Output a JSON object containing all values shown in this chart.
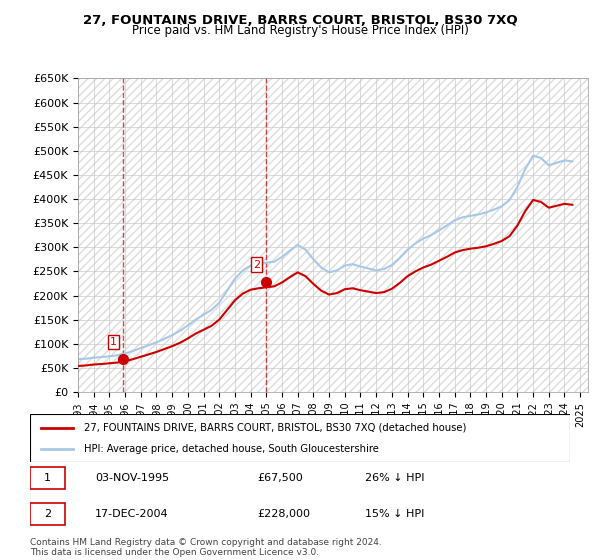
{
  "title": "27, FOUNTAINS DRIVE, BARRS COURT, BRISTOL, BS30 7XQ",
  "subtitle": "Price paid vs. HM Land Registry's House Price Index (HPI)",
  "legend_line1": "27, FOUNTAINS DRIVE, BARRS COURT, BRISTOL, BS30 7XQ (detached house)",
  "legend_line2": "HPI: Average price, detached house, South Gloucestershire",
  "table_row1_num": "1",
  "table_row1_date": "03-NOV-1995",
  "table_row1_price": "£67,500",
  "table_row1_hpi": "26% ↓ HPI",
  "table_row2_num": "2",
  "table_row2_date": "17-DEC-2004",
  "table_row2_price": "£228,000",
  "table_row2_hpi": "15% ↓ HPI",
  "footer": "Contains HM Land Registry data © Crown copyright and database right 2024.\nThis data is licensed under the Open Government Licence v3.0.",
  "ylim": [
    0,
    650000
  ],
  "yticks": [
    0,
    50000,
    100000,
    150000,
    200000,
    250000,
    300000,
    350000,
    400000,
    450000,
    500000,
    550000,
    600000,
    650000
  ],
  "ytick_labels": [
    "£0",
    "£50K",
    "£100K",
    "£150K",
    "£200K",
    "£250K",
    "£300K",
    "£350K",
    "£400K",
    "£450K",
    "£500K",
    "£550K",
    "£600K",
    "£650K"
  ],
  "hpi_color": "#a8c8e8",
  "price_color": "#cc0000",
  "marker_color": "#cc0000",
  "sale1_x": 1995.84,
  "sale1_y": 67500,
  "sale2_x": 2004.96,
  "sale2_y": 228000,
  "xmin": 1993,
  "xmax": 2025,
  "xticks": [
    1993,
    1994,
    1995,
    1996,
    1997,
    1998,
    1999,
    2000,
    2001,
    2002,
    2003,
    2004,
    2005,
    2006,
    2007,
    2008,
    2009,
    2010,
    2011,
    2012,
    2013,
    2014,
    2015,
    2016,
    2017,
    2018,
    2019,
    2020,
    2021,
    2022,
    2023,
    2024,
    2025
  ],
  "hpi_data_x": [
    1993,
    1993.5,
    1994,
    1994.5,
    1995,
    1995.5,
    1996,
    1996.5,
    1997,
    1997.5,
    1998,
    1998.5,
    1999,
    1999.5,
    2000,
    2000.5,
    2001,
    2001.5,
    2002,
    2002.5,
    2003,
    2003.5,
    2004,
    2004.5,
    2005,
    2005.5,
    2006,
    2006.5,
    2007,
    2007.5,
    2008,
    2008.5,
    2009,
    2009.5,
    2010,
    2010.5,
    2011,
    2011.5,
    2012,
    2012.5,
    2013,
    2013.5,
    2014,
    2014.5,
    2015,
    2015.5,
    2016,
    2016.5,
    2017,
    2017.5,
    2018,
    2018.5,
    2019,
    2019.5,
    2020,
    2020.5,
    2021,
    2021.5,
    2022,
    2022.5,
    2023,
    2023.5,
    2024,
    2024.5
  ],
  "hpi_data_y": [
    68000,
    69000,
    71000,
    72500,
    74000,
    76000,
    80000,
    85000,
    91000,
    97000,
    103000,
    110000,
    118000,
    127000,
    138000,
    150000,
    160000,
    170000,
    185000,
    210000,
    235000,
    252000,
    262000,
    265000,
    268000,
    270000,
    280000,
    293000,
    305000,
    295000,
    275000,
    258000,
    248000,
    252000,
    262000,
    265000,
    260000,
    256000,
    252000,
    255000,
    263000,
    278000,
    295000,
    308000,
    318000,
    325000,
    335000,
    345000,
    356000,
    362000,
    365000,
    368000,
    372000,
    378000,
    385000,
    398000,
    425000,
    462000,
    490000,
    485000,
    470000,
    475000,
    480000,
    478000
  ],
  "price_data_x": [
    1993,
    1993.5,
    1994,
    1994.5,
    1995,
    1995.5,
    1996,
    1996.5,
    1997,
    1997.5,
    1998,
    1998.5,
    1999,
    1999.5,
    2000,
    2000.5,
    2001,
    2001.5,
    2002,
    2002.5,
    2003,
    2003.5,
    2004,
    2004.5,
    2005,
    2005.5,
    2006,
    2006.5,
    2007,
    2007.5,
    2008,
    2008.5,
    2009,
    2009.5,
    2010,
    2010.5,
    2011,
    2011.5,
    2012,
    2012.5,
    2013,
    2013.5,
    2014,
    2014.5,
    2015,
    2015.5,
    2016,
    2016.5,
    2017,
    2017.5,
    2018,
    2018.5,
    2019,
    2019.5,
    2020,
    2020.5,
    2021,
    2021.5,
    2022,
    2022.5,
    2023,
    2023.5,
    2024,
    2024.5
  ],
  "price_data_y": [
    54000,
    55000,
    57000,
    58000,
    59500,
    61000,
    64000,
    68000,
    73000,
    78000,
    83000,
    89000,
    95000,
    102000,
    111000,
    121000,
    129000,
    137000,
    150000,
    170000,
    190000,
    204000,
    212000,
    215000,
    217000,
    219000,
    227000,
    238000,
    248000,
    240000,
    224000,
    210000,
    202000,
    205000,
    213000,
    215000,
    211000,
    208000,
    205000,
    207000,
    214000,
    226000,
    240000,
    250000,
    258000,
    264000,
    272000,
    280000,
    289000,
    294000,
    297000,
    299000,
    302000,
    307000,
    313000,
    323000,
    345000,
    375000,
    398000,
    394000,
    382000,
    386000,
    390000,
    388000
  ]
}
